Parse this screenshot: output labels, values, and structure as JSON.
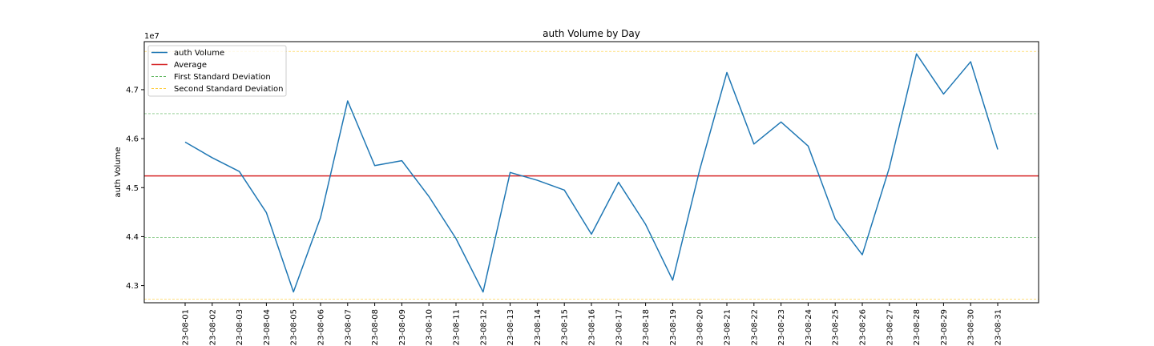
{
  "chart_data": {
    "type": "line",
    "title": "auth Volume by Day",
    "xlabel": "",
    "ylabel": "auth Volume",
    "y_offset_text": "1e7",
    "ylim": [
      42.65,
      47.98
    ],
    "y_ticks": [
      43.0,
      44.0,
      45.0,
      46.0,
      47.0
    ],
    "y_tick_labels": [
      "4.3",
      "4.4",
      "4.5",
      "4.6",
      "4.7"
    ],
    "y_value_unit": "1e6",
    "categories": [
      "23-08-01",
      "23-08-02",
      "23-08-03",
      "23-08-04",
      "23-08-05",
      "23-08-06",
      "23-08-07",
      "23-08-08",
      "23-08-09",
      "23-08-10",
      "23-08-11",
      "23-08-12",
      "23-08-13",
      "23-08-14",
      "23-08-15",
      "23-08-16",
      "23-08-17",
      "23-08-18",
      "23-08-19",
      "23-08-20",
      "23-08-21",
      "23-08-22",
      "23-08-23",
      "23-08-24",
      "23-08-25",
      "23-08-26",
      "23-08-27",
      "23-08-28",
      "23-08-29",
      "23-08-30",
      "23-08-31"
    ],
    "series": [
      {
        "name": "auth Volume",
        "color": "#1f77b4",
        "style": "solid",
        "values": [
          45.93,
          45.61,
          45.33,
          44.49,
          42.87,
          44.39,
          46.77,
          45.45,
          45.55,
          44.82,
          43.96,
          42.87,
          45.31,
          45.15,
          44.95,
          44.05,
          45.11,
          44.25,
          43.11,
          45.37,
          47.35,
          45.89,
          46.34,
          45.85,
          44.36,
          43.63,
          45.41,
          47.73,
          46.91,
          47.57,
          45.78
        ]
      }
    ],
    "reference_lines": [
      {
        "name": "Average",
        "value": 45.24,
        "color": "#d62728",
        "style": "solid"
      },
      {
        "name": "First Standard Deviation",
        "value": 46.51,
        "color": "#2ca02c",
        "style": "dashed"
      },
      {
        "name": "First Standard Deviation",
        "value": 43.98,
        "color": "#2ca02c",
        "style": "dashed"
      },
      {
        "name": "Second Standard Deviation",
        "value": 47.78,
        "color": "#ffbf00",
        "style": "dashed"
      },
      {
        "name": "Second Standard Deviation",
        "value": 42.72,
        "color": "#ffbf00",
        "style": "dashed"
      }
    ],
    "legend": {
      "placement": "upper-left",
      "entries": [
        {
          "label": "auth Volume",
          "color": "#1f77b4",
          "style": "solid"
        },
        {
          "label": "Average",
          "color": "#d62728",
          "style": "solid"
        },
        {
          "label": "First Standard Deviation",
          "color": "#2ca02c",
          "style": "dashed"
        },
        {
          "label": "Second Standard Deviation",
          "color": "#ffbf00",
          "style": "dashed"
        }
      ]
    },
    "grid": false
  }
}
